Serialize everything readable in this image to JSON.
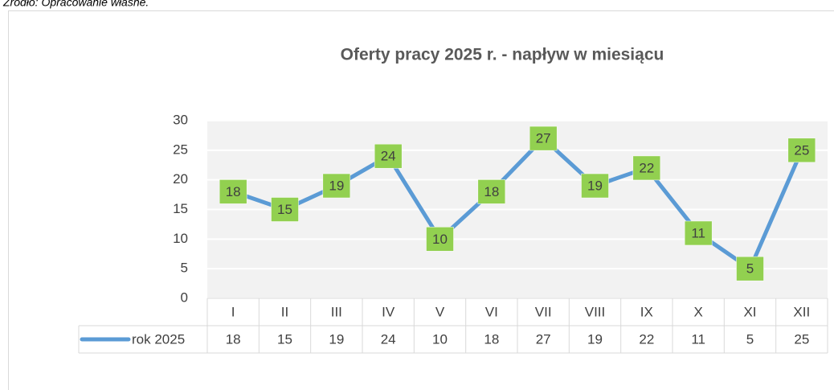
{
  "source_note": "Źródło: Opracowanie własne.",
  "chart_data": {
    "type": "line",
    "title": "Oferty pracy 2025 r. - napływ w miesiącu",
    "categories": [
      "I",
      "II",
      "III",
      "IV",
      "V",
      "VI",
      "VII",
      "VIII",
      "IX",
      "X",
      "XI",
      "XII"
    ],
    "series": [
      {
        "name": "rok 2025",
        "color": "#5b9bd5",
        "label_color": "#92d050",
        "values": [
          18,
          15,
          19,
          24,
          10,
          18,
          27,
          19,
          22,
          11,
          5,
          25
        ]
      }
    ],
    "ylim": [
      0,
      30
    ],
    "yticks": [
      0,
      5,
      10,
      15,
      20,
      25,
      30
    ],
    "grid": true,
    "data_table": true
  }
}
